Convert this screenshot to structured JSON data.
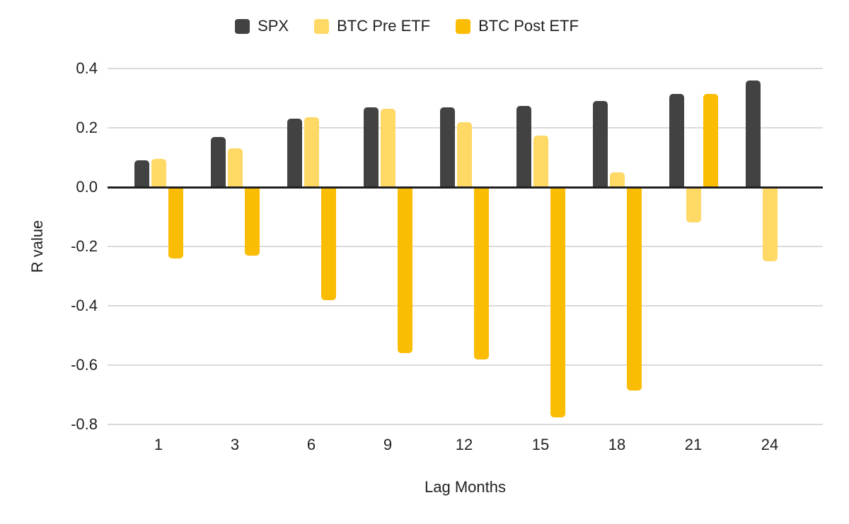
{
  "chart_data": {
    "type": "bar",
    "title": "",
    "xlabel": "Lag Months",
    "ylabel": "R value",
    "categories": [
      "1",
      "3",
      "6",
      "9",
      "12",
      "15",
      "18",
      "21",
      "24"
    ],
    "series": [
      {
        "name": "SPX",
        "color": "#424242",
        "values": [
          0.09,
          0.17,
          0.23,
          0.27,
          0.27,
          0.275,
          0.29,
          0.315,
          0.36
        ]
      },
      {
        "name": "BTC Pre ETF",
        "color": "#ffd966",
        "values": [
          0.095,
          0.13,
          0.235,
          0.265,
          0.22,
          0.175,
          0.05,
          -0.12,
          -0.25
        ]
      },
      {
        "name": "BTC Post ETF",
        "color": "#fbbc04",
        "values": [
          -0.24,
          -0.23,
          -0.38,
          -0.56,
          -0.58,
          -0.775,
          -0.685,
          0.315,
          null
        ]
      }
    ],
    "y_ticks": [
      {
        "label": "0.4",
        "value": 0.4
      },
      {
        "label": "0.2",
        "value": 0.2
      },
      {
        "label": "0.0",
        "value": 0.0
      },
      {
        "label": "-0.2",
        "value": -0.2
      },
      {
        "label": "-0.4",
        "value": -0.4
      },
      {
        "label": "-0.6",
        "value": -0.6
      },
      {
        "label": "-0.8",
        "value": -0.8
      }
    ],
    "ylim": [
      -0.8,
      0.4
    ],
    "grid": true,
    "legend_position": "top",
    "colors": {
      "background": "#ffffff",
      "gridline": "#dadada",
      "zero_line": "#1f1f1f",
      "text": "#212121"
    }
  }
}
